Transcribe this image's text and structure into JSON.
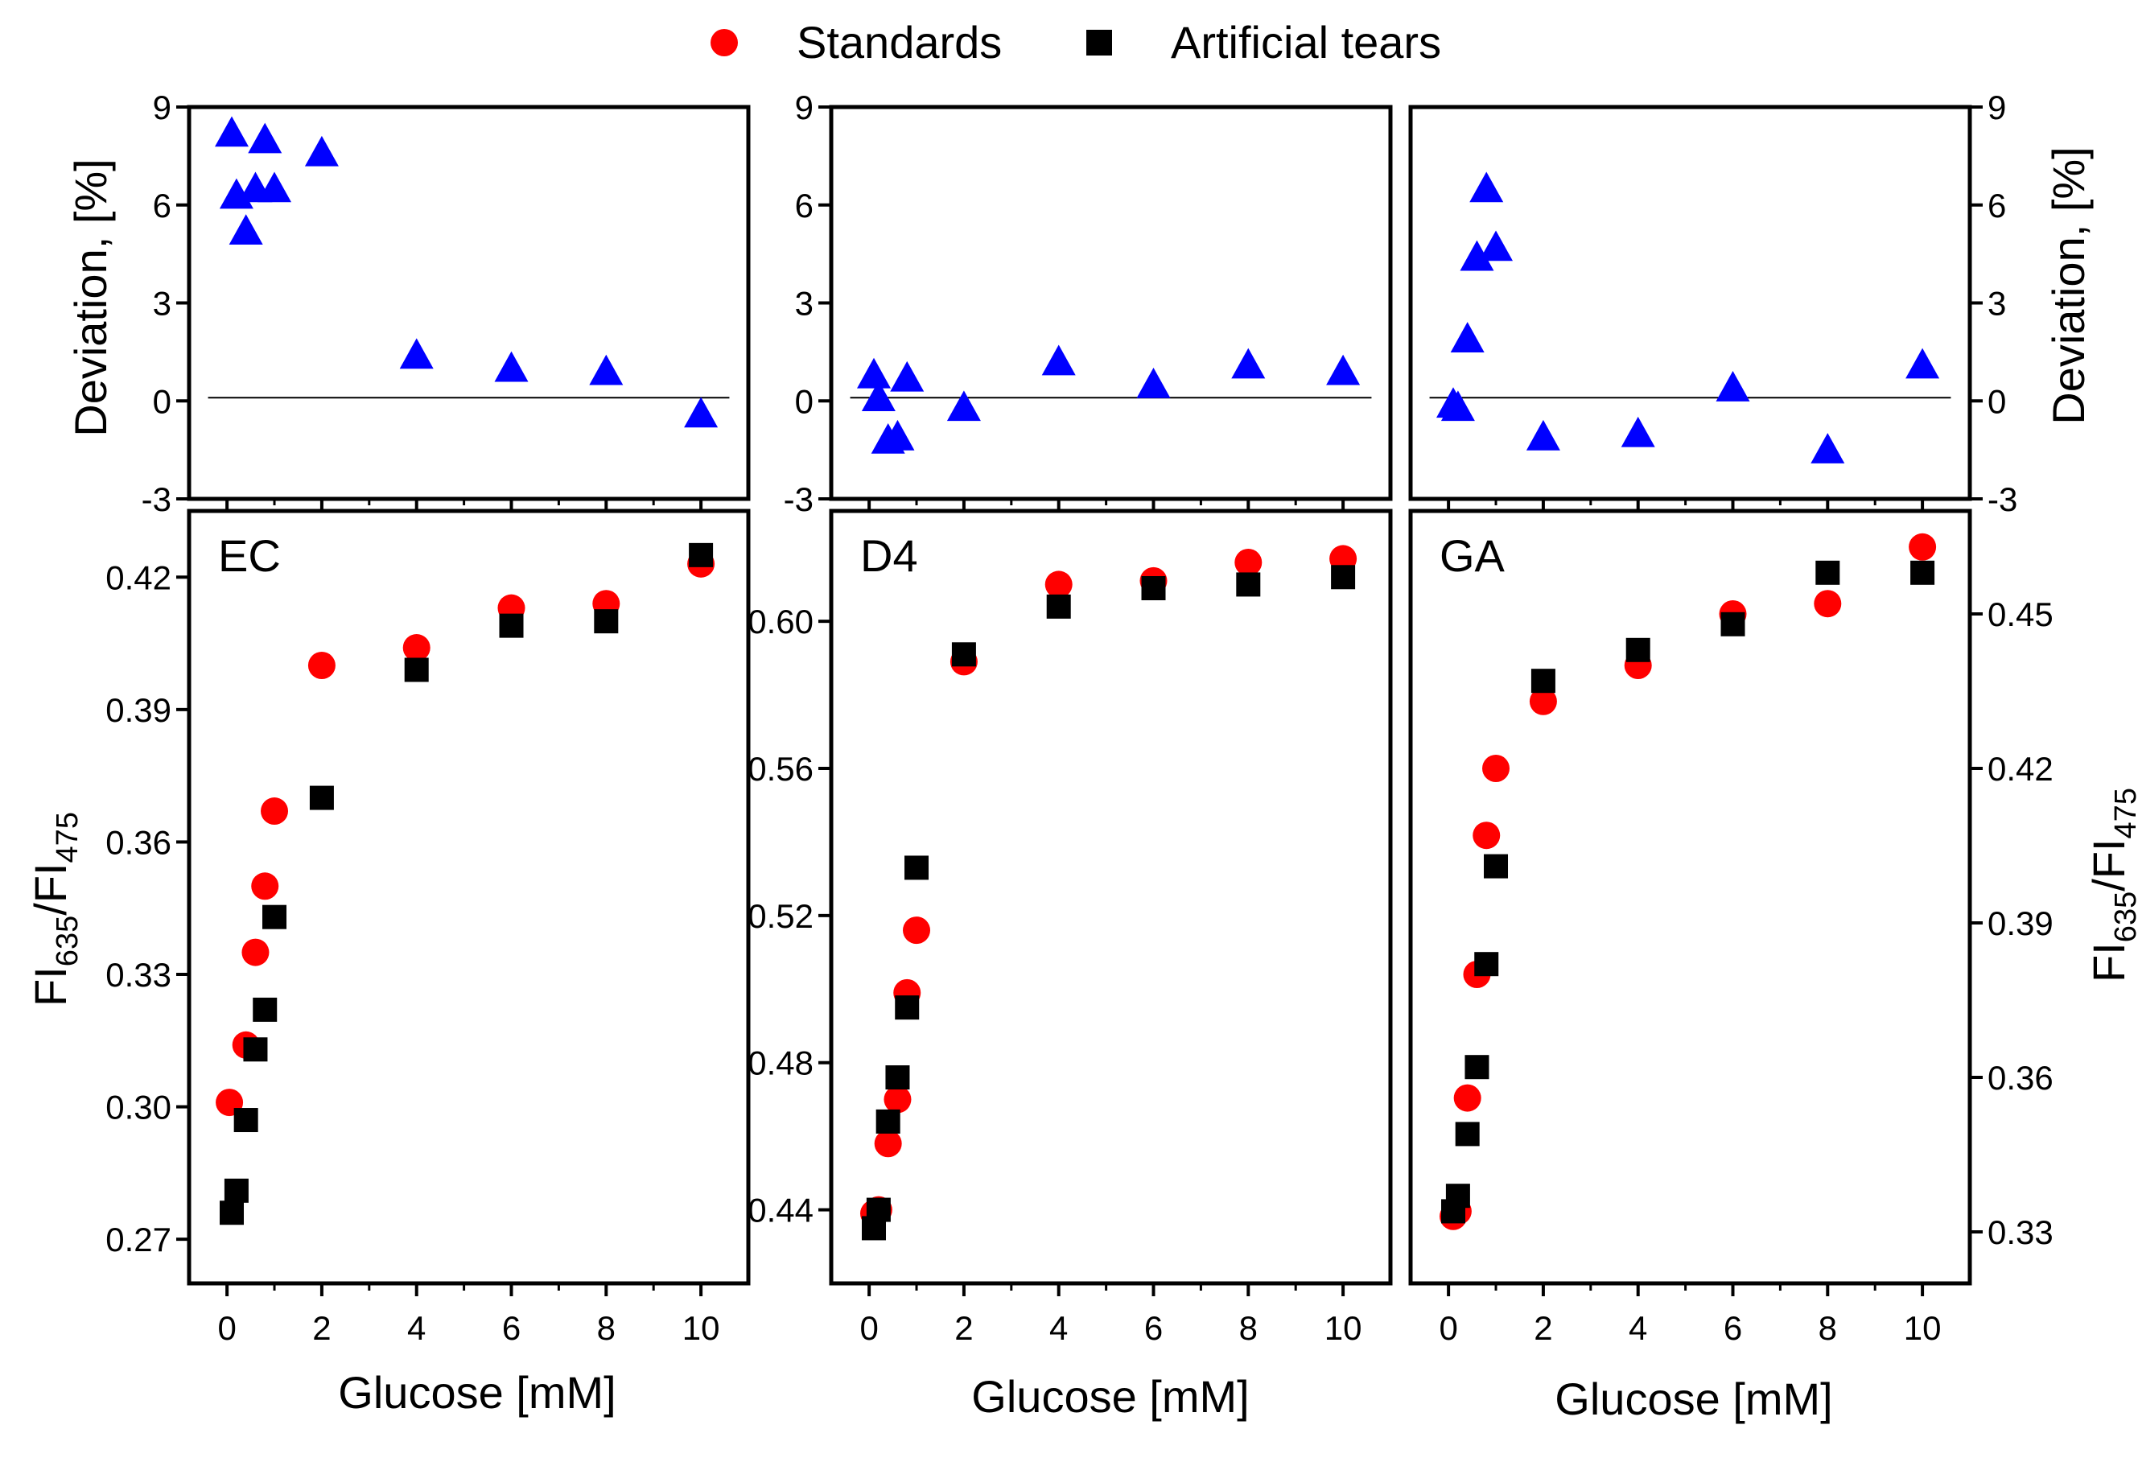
{
  "chart_data": {
    "type": "scatter",
    "legend": {
      "placement": "top-center",
      "items": [
        {
          "label": "Standards",
          "marker": "circle",
          "color": "#ff0000"
        },
        {
          "label": "Artificial tears",
          "marker": "square",
          "color": "#000000"
        }
      ]
    },
    "colors": {
      "standards": "#ff0000",
      "artificial_tears": "#000000",
      "deviation": "#0000ff"
    },
    "xlabel": "Glucose [mM]",
    "x_ticks": [
      "0",
      "2",
      "4",
      "6",
      "8",
      "10"
    ],
    "deviation_ylabel": "Deviation, [%]",
    "deviation_ylim": [
      -3,
      9
    ],
    "deviation_ticks": [
      "-3",
      "0",
      "3",
      "6",
      "9"
    ],
    "ratio_ylabel_main": "FI",
    "ratio_ylabel_sub1": "635",
    "ratio_ylabel_sep": "/FI",
    "ratio_ylabel_sub2": "475",
    "panels": [
      {
        "label": "EC",
        "ylim": [
          0.26,
          0.435
        ],
        "yticks": [
          "0.27",
          "0.30",
          "0.33",
          "0.36",
          "0.39",
          "0.42"
        ],
        "standards": [
          [
            0.05,
            0.301
          ],
          [
            0.4,
            0.314
          ],
          [
            0.6,
            0.335
          ],
          [
            0.8,
            0.35
          ],
          [
            1,
            0.367
          ],
          [
            2,
            0.4
          ],
          [
            4,
            0.404
          ],
          [
            6,
            0.413
          ],
          [
            8,
            0.414
          ],
          [
            10,
            0.423
          ]
        ],
        "artificial_tears": [
          [
            0.1,
            0.276
          ],
          [
            0.2,
            0.281
          ],
          [
            0.4,
            0.297
          ],
          [
            0.6,
            0.313
          ],
          [
            0.8,
            0.322
          ],
          [
            1,
            0.343
          ],
          [
            2,
            0.37
          ],
          [
            4,
            0.399
          ],
          [
            6,
            0.409
          ],
          [
            8,
            0.41
          ],
          [
            10,
            0.425
          ]
        ],
        "deviation": [
          [
            0.1,
            8.2
          ],
          [
            0.2,
            6.3
          ],
          [
            0.4,
            5.2
          ],
          [
            0.6,
            6.5
          ],
          [
            0.8,
            8.0
          ],
          [
            1,
            6.5
          ],
          [
            2,
            7.6
          ],
          [
            4,
            1.4
          ],
          [
            6,
            1.0
          ],
          [
            8,
            0.9
          ],
          [
            10,
            -0.4
          ]
        ]
      },
      {
        "label": "D4",
        "ylim": [
          0.42,
          0.63
        ],
        "yticks": [
          "0.44",
          "0.48",
          "0.52",
          "0.56",
          "0.60"
        ],
        "standards": [
          [
            0.1,
            0.439
          ],
          [
            0.2,
            0.44
          ],
          [
            0.4,
            0.458
          ],
          [
            0.6,
            0.47
          ],
          [
            0.8,
            0.499
          ],
          [
            1,
            0.516
          ],
          [
            2,
            0.589
          ],
          [
            4,
            0.61
          ],
          [
            6,
            0.611
          ],
          [
            8,
            0.616
          ],
          [
            10,
            0.617
          ]
        ],
        "artificial_tears": [
          [
            0.1,
            0.435
          ],
          [
            0.2,
            0.44
          ],
          [
            0.4,
            0.464
          ],
          [
            0.6,
            0.476
          ],
          [
            0.8,
            0.495
          ],
          [
            1,
            0.533
          ],
          [
            2,
            0.591
          ],
          [
            4,
            0.604
          ],
          [
            6,
            0.609
          ],
          [
            8,
            0.61
          ],
          [
            10,
            0.612
          ]
        ],
        "deviation": [
          [
            0.1,
            0.8
          ],
          [
            0.2,
            0.1
          ],
          [
            0.4,
            -1.2
          ],
          [
            0.6,
            -1.1
          ],
          [
            0.8,
            0.7
          ],
          [
            2,
            -0.2
          ],
          [
            4,
            1.2
          ],
          [
            6,
            0.5
          ],
          [
            8,
            1.1
          ],
          [
            10,
            0.9
          ]
        ]
      },
      {
        "label": "GA",
        "ylim": [
          0.32,
          0.47
        ],
        "yticks": [
          "0.33",
          "0.36",
          "0.39",
          "0.42",
          "0.45"
        ],
        "standards": [
          [
            0.1,
            0.333
          ],
          [
            0.2,
            0.334
          ],
          [
            0.4,
            0.356
          ],
          [
            0.6,
            0.38
          ],
          [
            0.8,
            0.407
          ],
          [
            1,
            0.42
          ],
          [
            2,
            0.433
          ],
          [
            4,
            0.44
          ],
          [
            6,
            0.45
          ],
          [
            8,
            0.452
          ],
          [
            10,
            0.463
          ]
        ],
        "artificial_tears": [
          [
            0.1,
            0.334
          ],
          [
            0.2,
            0.337
          ],
          [
            0.4,
            0.349
          ],
          [
            0.6,
            0.362
          ],
          [
            0.8,
            0.382
          ],
          [
            1,
            0.401
          ],
          [
            2,
            0.437
          ],
          [
            4,
            0.443
          ],
          [
            6,
            0.448
          ],
          [
            8,
            0.458
          ],
          [
            10,
            0.458
          ]
        ],
        "deviation": [
          [
            0.1,
            -0.1
          ],
          [
            0.2,
            -0.2
          ],
          [
            0.4,
            1.9
          ],
          [
            0.6,
            4.4
          ],
          [
            0.8,
            6.5
          ],
          [
            1,
            4.7
          ],
          [
            2,
            -1.1
          ],
          [
            4,
            -1.0
          ],
          [
            6,
            0.4
          ],
          [
            8,
            -1.5
          ],
          [
            10,
            1.1
          ]
        ]
      }
    ]
  }
}
